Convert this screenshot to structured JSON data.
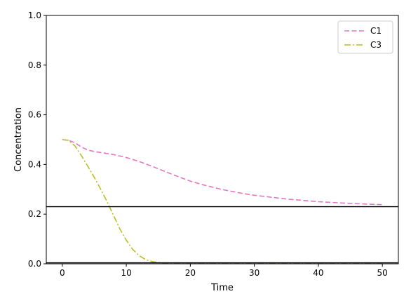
{
  "chart_data": {
    "type": "line",
    "title": "",
    "xlabel": "Time",
    "ylabel": "Concentration",
    "xlim": [
      -2.5,
      52.5
    ],
    "ylim": [
      0.0,
      1.0
    ],
    "xticks": [
      0,
      10,
      20,
      30,
      40,
      50
    ],
    "yticks": [
      0.0,
      0.2,
      0.4,
      0.6,
      0.8,
      1.0
    ],
    "xtick_labels": [
      "0",
      "10",
      "20",
      "30",
      "40",
      "50"
    ],
    "ytick_labels": [
      "0.0",
      "0.2",
      "0.4",
      "0.6",
      "0.8",
      "1.0"
    ],
    "grid": false,
    "legend": "top-right",
    "series": [
      {
        "name": "C1",
        "color": "#e377c2",
        "style": "dashed",
        "x": [
          0,
          1,
          2,
          3,
          4,
          5,
          6,
          8,
          10,
          12,
          14,
          16,
          18,
          20,
          22,
          25,
          28,
          30,
          35,
          40,
          45,
          50
        ],
        "y": [
          0.5,
          0.497,
          0.487,
          0.47,
          0.458,
          0.452,
          0.448,
          0.44,
          0.428,
          0.412,
          0.393,
          0.372,
          0.352,
          0.333,
          0.318,
          0.299,
          0.284,
          0.276,
          0.261,
          0.25,
          0.243,
          0.238
        ]
      },
      {
        "name": "C3",
        "color": "#bcbd22",
        "style": "dashdot",
        "x": [
          0,
          1,
          2,
          3,
          4,
          5,
          6,
          7,
          8,
          9,
          10,
          11,
          12,
          13,
          14,
          15,
          16,
          18,
          20,
          25,
          30,
          40,
          50
        ],
        "y": [
          0.5,
          0.497,
          0.474,
          0.435,
          0.392,
          0.348,
          0.3,
          0.25,
          0.195,
          0.14,
          0.095,
          0.058,
          0.033,
          0.017,
          0.009,
          0.005,
          0.003,
          0.002,
          0.001,
          0.001,
          0.001,
          0.001,
          0.001
        ]
      }
    ],
    "hlines": [
      {
        "y": 0.23,
        "color": "#000000"
      },
      {
        "y": 0.004,
        "color": "#000000"
      }
    ]
  }
}
